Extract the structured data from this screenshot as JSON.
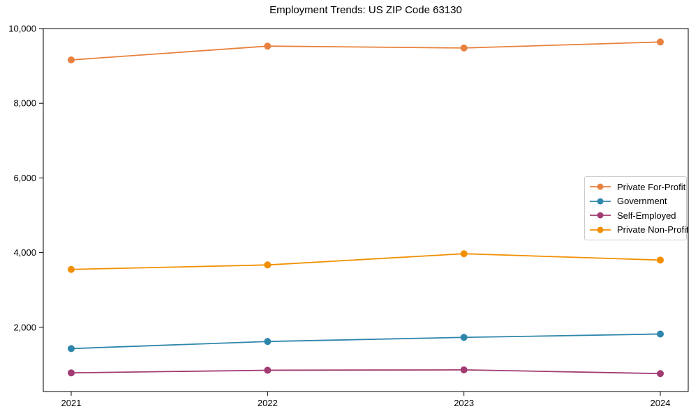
{
  "title": "Employment Trends: US ZIP Code 63130",
  "chart_data": {
    "type": "line",
    "title": "Employment Trends: US ZIP Code 63130",
    "x": [
      2021,
      2022,
      2023,
      2024
    ],
    "xtick_labels": [
      "2021",
      "2022",
      "2023",
      "2024"
    ],
    "yticks": [
      2000,
      4000,
      6000,
      8000,
      10000
    ],
    "ytick_labels": [
      "2,000",
      "4,000",
      "6,000",
      "8,000",
      "10,000"
    ],
    "ylim": [
      280,
      10000
    ],
    "xlabel": "",
    "ylabel": "",
    "grid": false,
    "marker": "circle",
    "legend_position": "center-right",
    "series": [
      {
        "name": "Private For-Profit",
        "color": "#e8813d",
        "values": [
          9160,
          9530,
          9480,
          9640
        ]
      },
      {
        "name": "Government",
        "color": "#2e86ab",
        "values": [
          1430,
          1620,
          1730,
          1820
        ]
      },
      {
        "name": "Self-Employed",
        "color": "#a23b72",
        "values": [
          780,
          850,
          860,
          760
        ]
      },
      {
        "name": "Private Non-Profit",
        "color": "#f18f01",
        "values": [
          3550,
          3670,
          3970,
          3800
        ]
      }
    ]
  }
}
